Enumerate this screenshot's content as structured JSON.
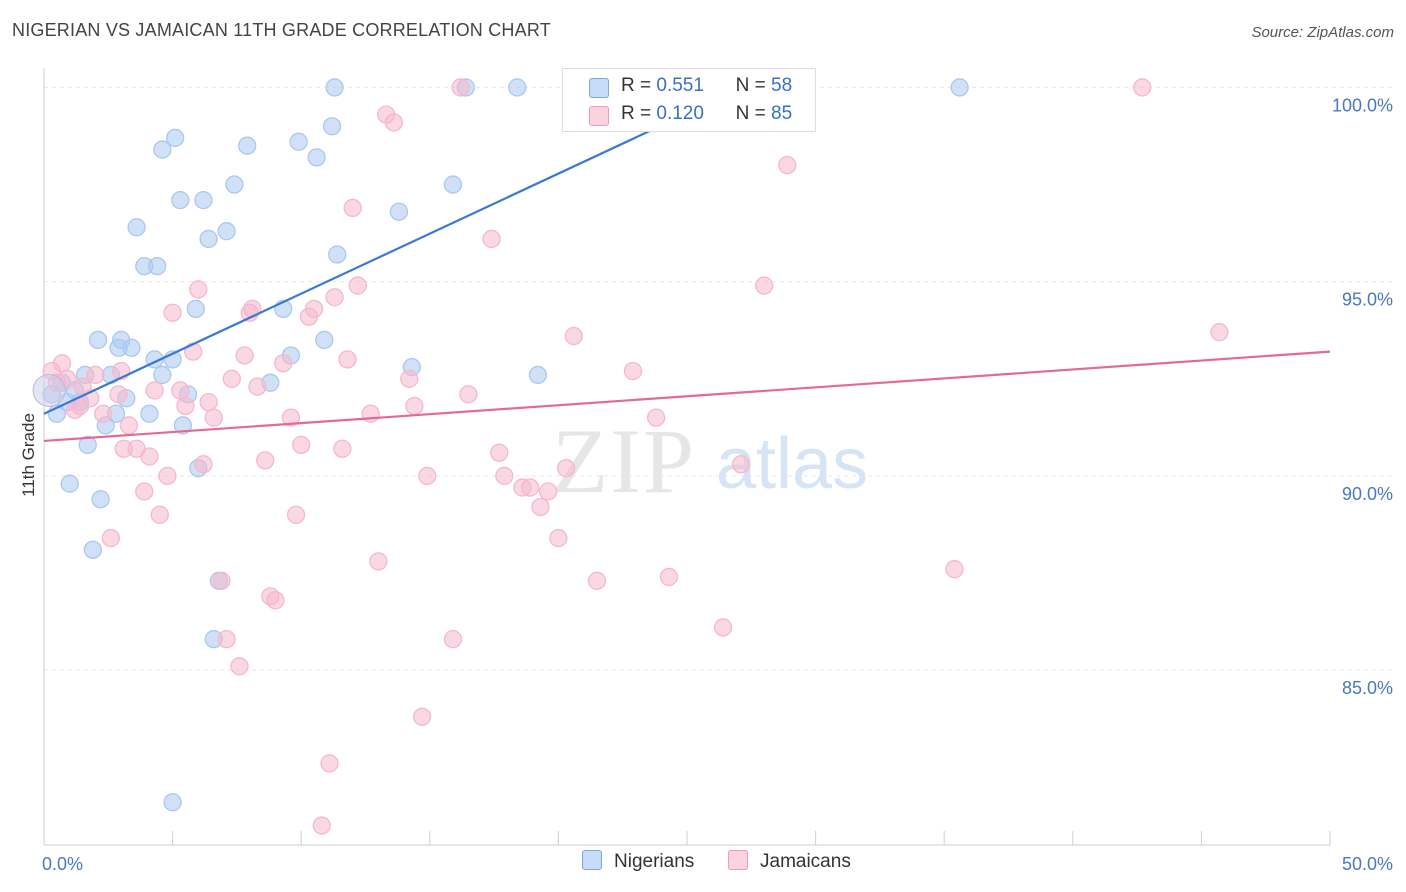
{
  "title": "NIGERIAN VS JAMAICAN 11TH GRADE CORRELATION CHART",
  "source": "Source: ZipAtlas.com",
  "watermark": {
    "zip": "ZIP",
    "atlas": "atlas"
  },
  "legend_top": [
    {
      "r_label": "R =",
      "r_value": "0.551",
      "n_label": "N =",
      "n_value": "58",
      "color": "#aac8f0"
    },
    {
      "r_label": "R =",
      "r_value": "0.120",
      "n_label": "N =",
      "n_value": "85",
      "color": "#f5b8cc"
    }
  ],
  "legend_bottom": [
    {
      "label": "Nigerians",
      "color": "#aac8f0"
    },
    {
      "label": "Jamaicans",
      "color": "#f5b8cc"
    }
  ],
  "chart_data": {
    "type": "scatter",
    "title": "NIGERIAN VS JAMAICAN 11TH GRADE CORRELATION CHART",
    "xlabel": "",
    "ylabel": "11th Grade",
    "xlim": [
      0,
      50
    ],
    "ylim": [
      80.5,
      100.5
    ],
    "x_tick_labels": [
      {
        "value": 0,
        "label": "0.0%"
      },
      {
        "value": 50,
        "label": "50.0%"
      }
    ],
    "y_tick_labels": [
      {
        "value": 100,
        "label": "100.0%"
      },
      {
        "value": 95,
        "label": "95.0%"
      },
      {
        "value": 90,
        "label": "90.0%"
      },
      {
        "value": 85,
        "label": "85.0%"
      }
    ],
    "grid": true,
    "series": [
      {
        "name": "Nigerians",
        "color": "#3a78d4",
        "fill": "#aac8f0",
        "trend": {
          "x": [
            0,
            27.5
          ],
          "y": [
            91.6,
            100.1
          ]
        },
        "points": [
          [
            0.3,
            92.1
          ],
          [
            0.5,
            91.6
          ],
          [
            0.7,
            92.4
          ],
          [
            0.9,
            91.9
          ],
          [
            1.0,
            89.8
          ],
          [
            1.2,
            92.2
          ],
          [
            1.4,
            91.9
          ],
          [
            1.6,
            92.6
          ],
          [
            1.7,
            90.8
          ],
          [
            1.9,
            88.1
          ],
          [
            2.1,
            93.5
          ],
          [
            2.2,
            89.4
          ],
          [
            2.4,
            91.3
          ],
          [
            2.6,
            92.6
          ],
          [
            2.8,
            91.6
          ],
          [
            3.0,
            93.5
          ],
          [
            3.2,
            92.0
          ],
          [
            3.4,
            93.3
          ],
          [
            3.6,
            96.4
          ],
          [
            3.9,
            95.4
          ],
          [
            4.1,
            91.6
          ],
          [
            4.3,
            93.0
          ],
          [
            4.4,
            95.4
          ],
          [
            4.6,
            92.6
          ],
          [
            5.0,
            93.0
          ],
          [
            5.1,
            98.7
          ],
          [
            5.3,
            97.1
          ],
          [
            5.4,
            91.3
          ],
          [
            5.6,
            92.1
          ],
          [
            5.9,
            94.3
          ],
          [
            6.2,
            97.1
          ],
          [
            6.4,
            96.1
          ],
          [
            6.6,
            85.8
          ],
          [
            6.8,
            87.3
          ],
          [
            7.1,
            96.3
          ],
          [
            7.4,
            97.5
          ],
          [
            7.9,
            98.5
          ],
          [
            8.8,
            92.4
          ],
          [
            9.3,
            94.3
          ],
          [
            9.6,
            93.1
          ],
          [
            9.9,
            98.6
          ],
          [
            10.6,
            98.2
          ],
          [
            10.9,
            93.5
          ],
          [
            11.3,
            100.0
          ],
          [
            11.4,
            95.7
          ],
          [
            13.8,
            96.8
          ],
          [
            14.3,
            92.8
          ],
          [
            15.9,
            97.5
          ],
          [
            16.4,
            100.0
          ],
          [
            18.4,
            100.0
          ],
          [
            19.2,
            92.6
          ],
          [
            26.6,
            100.0
          ],
          [
            35.6,
            100.0
          ],
          [
            5.0,
            81.6
          ],
          [
            4.6,
            98.4
          ],
          [
            6.0,
            90.2
          ],
          [
            11.2,
            99.0
          ],
          [
            2.9,
            93.3
          ]
        ]
      },
      {
        "name": "Jamaicans",
        "color": "#e46a95",
        "fill": "#f5b8cc",
        "trend": {
          "x": [
            0,
            50
          ],
          "y": [
            90.9,
            93.2
          ]
        },
        "points": [
          [
            0.3,
            92.7
          ],
          [
            0.5,
            92.4
          ],
          [
            0.7,
            92.9
          ],
          [
            0.9,
            92.5
          ],
          [
            1.2,
            91.7
          ],
          [
            1.5,
            92.3
          ],
          [
            1.8,
            92.0
          ],
          [
            2.0,
            92.6
          ],
          [
            2.3,
            91.6
          ],
          [
            2.6,
            88.4
          ],
          [
            2.9,
            92.1
          ],
          [
            3.1,
            90.7
          ],
          [
            3.3,
            91.3
          ],
          [
            3.6,
            90.7
          ],
          [
            3.9,
            89.6
          ],
          [
            4.1,
            90.5
          ],
          [
            4.3,
            92.2
          ],
          [
            4.5,
            89.0
          ],
          [
            4.8,
            90.0
          ],
          [
            5.0,
            94.2
          ],
          [
            5.3,
            92.2
          ],
          [
            5.5,
            91.8
          ],
          [
            5.8,
            93.2
          ],
          [
            6.0,
            94.8
          ],
          [
            6.2,
            90.3
          ],
          [
            6.4,
            91.9
          ],
          [
            6.6,
            91.5
          ],
          [
            6.9,
            87.3
          ],
          [
            7.1,
            85.8
          ],
          [
            7.3,
            92.5
          ],
          [
            7.6,
            85.1
          ],
          [
            7.8,
            93.1
          ],
          [
            8.0,
            94.2
          ],
          [
            8.3,
            92.3
          ],
          [
            8.6,
            90.4
          ],
          [
            8.8,
            86.9
          ],
          [
            9.0,
            86.8
          ],
          [
            9.3,
            92.9
          ],
          [
            9.6,
            91.5
          ],
          [
            9.8,
            89.0
          ],
          [
            10.0,
            90.8
          ],
          [
            10.3,
            94.1
          ],
          [
            10.5,
            94.3
          ],
          [
            10.8,
            81.0
          ],
          [
            11.1,
            82.6
          ],
          [
            11.3,
            94.6
          ],
          [
            11.6,
            90.7
          ],
          [
            11.8,
            93.0
          ],
          [
            12.0,
            96.9
          ],
          [
            12.2,
            94.9
          ],
          [
            12.7,
            91.6
          ],
          [
            13.0,
            87.8
          ],
          [
            13.3,
            99.3
          ],
          [
            13.6,
            99.1
          ],
          [
            14.2,
            92.5
          ],
          [
            14.4,
            91.8
          ],
          [
            14.7,
            83.8
          ],
          [
            14.9,
            90.0
          ],
          [
            15.9,
            85.8
          ],
          [
            16.2,
            100.0
          ],
          [
            16.5,
            92.1
          ],
          [
            17.4,
            96.1
          ],
          [
            17.7,
            90.6
          ],
          [
            17.9,
            90.0
          ],
          [
            18.6,
            89.7
          ],
          [
            18.9,
            89.7
          ],
          [
            19.3,
            89.2
          ],
          [
            19.6,
            89.6
          ],
          [
            20.0,
            88.4
          ],
          [
            20.3,
            90.2
          ],
          [
            20.6,
            93.6
          ],
          [
            21.5,
            87.3
          ],
          [
            22.9,
            92.7
          ],
          [
            23.8,
            91.5
          ],
          [
            24.3,
            87.4
          ],
          [
            26.4,
            86.1
          ],
          [
            27.1,
            90.3
          ],
          [
            28.0,
            94.9
          ],
          [
            28.9,
            98.0
          ],
          [
            35.4,
            87.6
          ],
          [
            42.7,
            100.0
          ],
          [
            45.7,
            93.7
          ],
          [
            1.4,
            91.8
          ],
          [
            3.0,
            92.7
          ],
          [
            8.1,
            94.3
          ]
        ]
      }
    ]
  }
}
